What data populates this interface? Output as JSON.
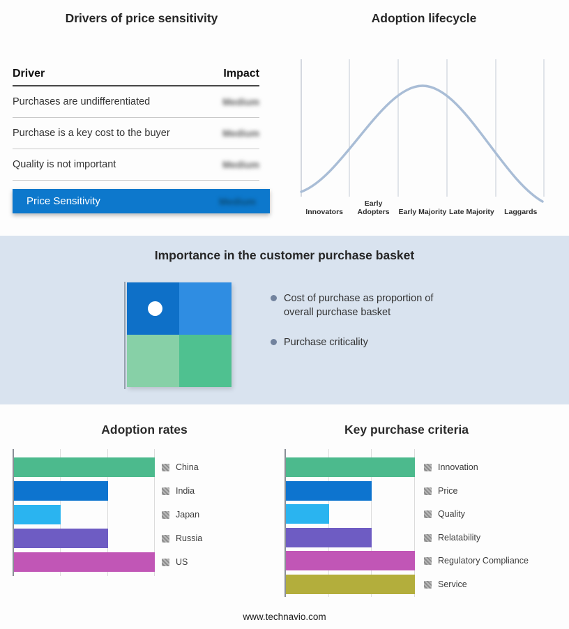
{
  "page": {
    "footer_link": "www.technavio.com"
  },
  "drivers_panel": {
    "title": "Drivers of price sensitivity",
    "columns": {
      "driver": "Driver",
      "impact": "Impact"
    },
    "rows": [
      {
        "driver": "Purchases are undifferentiated",
        "impact": "Medium"
      },
      {
        "driver": "Purchase is a key cost to the buyer",
        "impact": "Medium"
      },
      {
        "driver": "Quality is not important",
        "impact": "Medium"
      }
    ],
    "highlight_row": {
      "label": "Price Sensitivity",
      "impact": "Medium",
      "color": "#0d78cc"
    }
  },
  "basket_panel": {
    "title": "Importance in the customer purchase basket",
    "bullets": [
      "Cost of purchase as proportion of overall purchase basket",
      "Purchase criticality"
    ],
    "quadrant_colors": [
      "#0e70c8",
      "#2f8de2",
      "#87d0a7",
      "#4fc190"
    ],
    "band_bg": "#d9e3ef"
  },
  "chart_data": [
    {
      "type": "line",
      "title": "Adoption lifecycle",
      "shape": "bell-curve",
      "peak_stage": "Early Majority",
      "stages": [
        "Innovators",
        "Early Adopters",
        "Early Majority",
        "Late Majority",
        "Laggards"
      ],
      "curve_color": "#a9bdd6",
      "grid": true
    },
    {
      "type": "bar",
      "title": "Adoption rates",
      "orientation": "horizontal",
      "xlim": [
        0,
        3
      ],
      "grid": true,
      "legend_position": "right",
      "series": [
        {
          "label": "China",
          "value": 3,
          "color": "#4cba8d"
        },
        {
          "label": "India",
          "value": 2,
          "color": "#0d74cf"
        },
        {
          "label": "Japan",
          "value": 1,
          "color": "#2ab4f0"
        },
        {
          "label": "Russia",
          "value": 2,
          "color": "#6e5cc3"
        },
        {
          "label": "US",
          "value": 3,
          "color": "#c156b6"
        }
      ]
    },
    {
      "type": "bar",
      "title": "Key purchase criteria",
      "orientation": "horizontal",
      "xlim": [
        0,
        3
      ],
      "grid": true,
      "legend_position": "right",
      "series": [
        {
          "label": "Innovation",
          "value": 3,
          "color": "#4cba8d"
        },
        {
          "label": "Price",
          "value": 2,
          "color": "#0d74cf"
        },
        {
          "label": "Quality",
          "value": 1,
          "color": "#2ab4f0"
        },
        {
          "label": "Relatability",
          "value": 2,
          "color": "#6e5cc3"
        },
        {
          "label": "Regulatory Compliance",
          "value": 3,
          "color": "#c156b6"
        },
        {
          "label": "Service",
          "value": 3,
          "color": "#b3ae3c"
        }
      ]
    }
  ]
}
